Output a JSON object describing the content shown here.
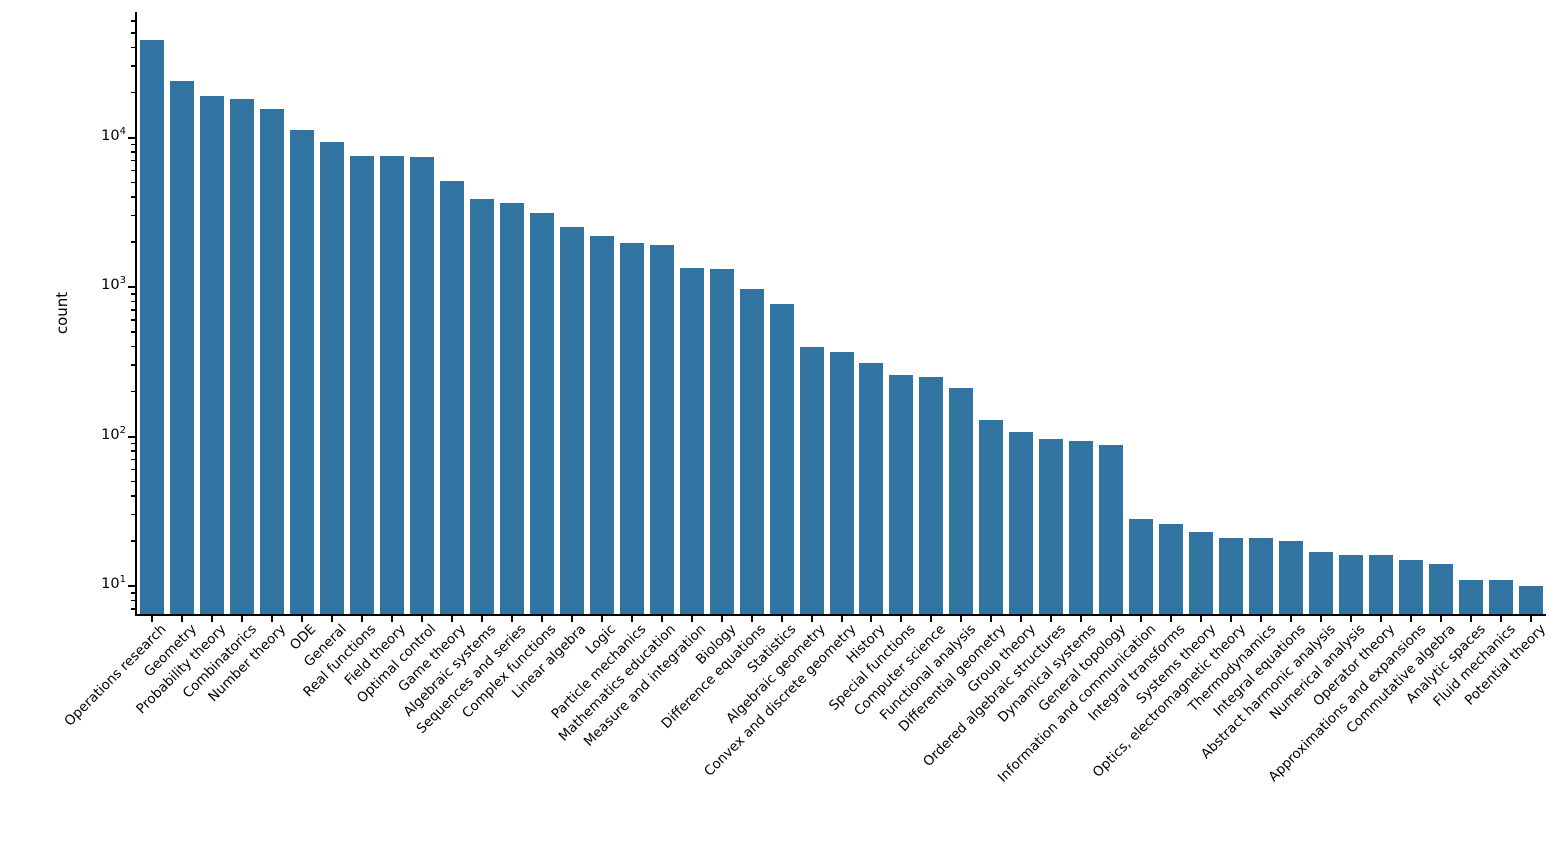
{
  "chart_data": {
    "type": "bar",
    "title": "",
    "xlabel": "",
    "ylabel": "count",
    "yscale": "log",
    "grid": false,
    "legend_position": "none",
    "bar_color": "#3274a1",
    "ylim_approx": [
      6.5,
      66000
    ],
    "yticks": {
      "base": "10",
      "major": [
        {
          "exp": "4",
          "value": 10000
        },
        {
          "exp": "3",
          "value": 1000
        },
        {
          "exp": "2",
          "value": 100
        },
        {
          "exp": "1",
          "value": 10
        }
      ]
    },
    "categories": [
      "Operations research",
      "Geometry",
      "Probability theory",
      "Combinatorics",
      "Number theory",
      "ODE",
      "General",
      "Real functions",
      "Field theory",
      "Optimal control",
      "Game theory",
      "Algebraic systems",
      "Sequences and series",
      "Complex functions",
      "Linear algebra",
      "Logic",
      "Particle mechanics",
      "Mathematics education",
      "Measure and integration",
      "Biology",
      "Difference equations",
      "Statistics",
      "Algebraic geometry",
      "Convex and discrete geometry",
      "History",
      "Special functions",
      "Computer science",
      "Functional analysis",
      "Differential geometry",
      "Group theory",
      "Ordered algebraic structures",
      "Dynamical systems",
      "General topology",
      "Information and communication",
      "Integral transforms",
      "Systems theory",
      "Optics, electromagnetic theory",
      "Thermodynamics",
      "Integral equations",
      "Abstract harmonic analysis",
      "Numerical analysis",
      "Operator theory",
      "Approximations and expansions",
      "Commutative algebra",
      "Analytic spaces",
      "Fluid mechanics",
      "Potential theory"
    ],
    "values": [
      45000,
      24000,
      19000,
      18200,
      15500,
      11200,
      9300,
      7550,
      7500,
      7450,
      5100,
      3900,
      3630,
      3140,
      2530,
      2200,
      1980,
      1920,
      1340,
      1320,
      970,
      770,
      395,
      365,
      310,
      257,
      251,
      211,
      128,
      107,
      96,
      93,
      88,
      28,
      26,
      23,
      21,
      21,
      20,
      17,
      16,
      16,
      15,
      14,
      11,
      11,
      10
    ]
  }
}
